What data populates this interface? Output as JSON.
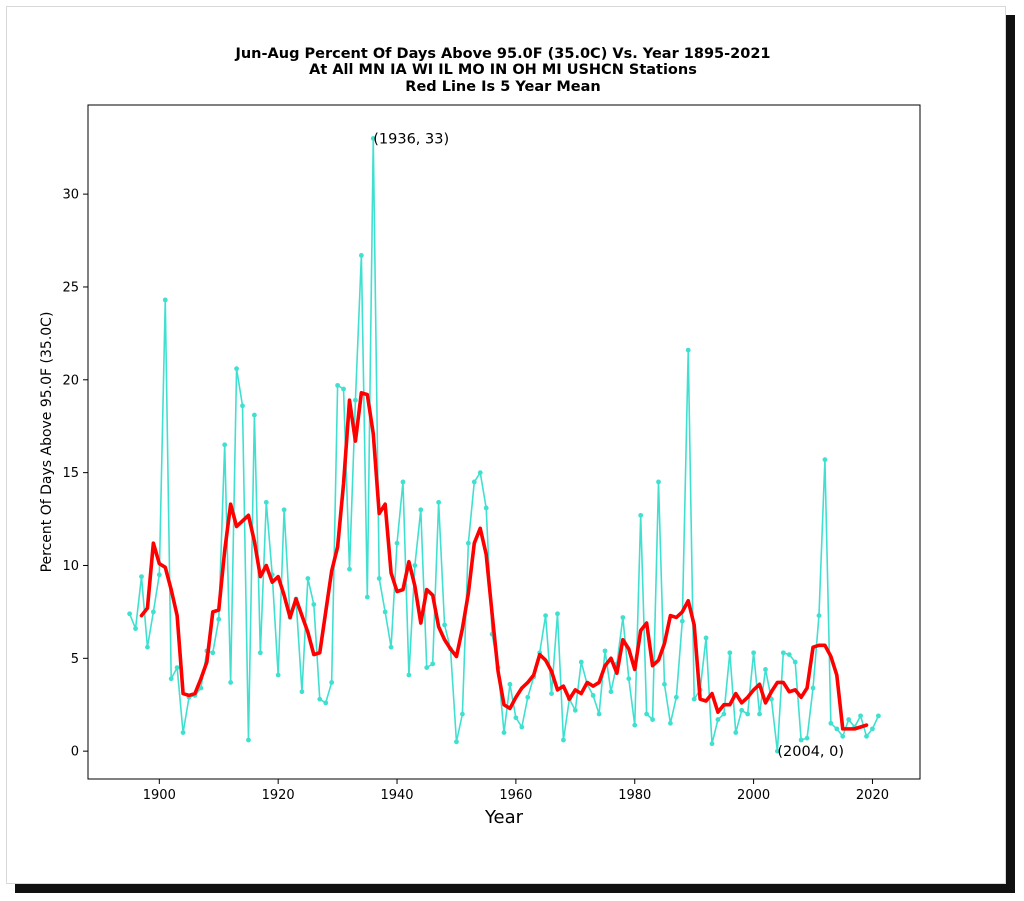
{
  "chart_data": {
    "type": "line",
    "title": [
      "Jun-Aug Percent Of Days Above 95.0F (35.0C) Vs. Year 1895-2021",
      "At All MN IA WI IL MO IN OH MI USHCN Stations",
      "Red Line Is 5 Year Mean"
    ],
    "xlabel": "Year",
    "ylabel": "Percent Of Days Above 95.0F (35.0C)",
    "xlim": [
      1888,
      2028
    ],
    "ylim": [
      -1.5,
      34.8
    ],
    "xticks": [
      1900,
      1920,
      1940,
      1960,
      1980,
      2000,
      2020
    ],
    "yticks": [
      0,
      5,
      10,
      15,
      20,
      25,
      30
    ],
    "grid": false,
    "series": [
      {
        "color": "#40e0d0",
        "marker": "dot",
        "x": [
          1895,
          1896,
          1897,
          1898,
          1899,
          1900,
          1901,
          1902,
          1903,
          1904,
          1905,
          1906,
          1907,
          1908,
          1909,
          1910,
          1911,
          1912,
          1913,
          1914,
          1915,
          1916,
          1917,
          1918,
          1919,
          1920,
          1921,
          1922,
          1923,
          1924,
          1925,
          1926,
          1927,
          1928,
          1929,
          1930,
          1931,
          1932,
          1933,
          1934,
          1935,
          1936,
          1937,
          1938,
          1939,
          1940,
          1941,
          1942,
          1943,
          1944,
          1945,
          1946,
          1947,
          1948,
          1949,
          1950,
          1951,
          1952,
          1953,
          1954,
          1955,
          1956,
          1957,
          1958,
          1959,
          1960,
          1961,
          1962,
          1963,
          1964,
          1965,
          1966,
          1967,
          1968,
          1969,
          1970,
          1971,
          1972,
          1973,
          1974,
          1975,
          1976,
          1977,
          1978,
          1979,
          1980,
          1981,
          1982,
          1983,
          1984,
          1985,
          1986,
          1987,
          1988,
          1989,
          1990,
          1991,
          1992,
          1993,
          1994,
          1995,
          1996,
          1997,
          1998,
          1999,
          2000,
          2001,
          2002,
          2003,
          2004,
          2005,
          2006,
          2007,
          2008,
          2009,
          2010,
          2011,
          2012,
          2013,
          2014,
          2015,
          2016,
          2017,
          2018,
          2019,
          2020,
          2021
        ],
        "y": [
          7.4,
          6.6,
          9.4,
          5.6,
          7.5,
          9.5,
          24.3,
          3.9,
          4.5,
          1.0,
          2.9,
          3.0,
          3.4,
          5.4,
          5.3,
          7.1,
          16.5,
          3.7,
          20.6,
          18.6,
          0.6,
          18.1,
          5.3,
          13.4,
          9.5,
          4.1,
          13.0,
          7.2,
          8.2,
          3.2,
          9.3,
          7.9,
          2.8,
          2.6,
          3.7,
          19.7,
          19.5,
          9.8,
          18.9,
          26.7,
          8.3,
          33.0,
          9.3,
          7.5,
          5.6,
          11.2,
          14.5,
          4.1,
          10.0,
          13.0,
          4.5,
          4.7,
          13.4,
          6.8,
          5.5,
          0.5,
          2.0,
          11.2,
          14.5,
          15.0,
          13.1,
          6.3,
          4.5,
          1.0,
          3.6,
          1.8,
          1.3,
          2.9,
          4.0,
          5.3,
          7.3,
          3.1,
          7.4,
          0.6,
          2.8,
          2.2,
          4.8,
          3.6,
          3.0,
          2.0,
          5.4,
          3.2,
          4.7,
          7.2,
          3.9,
          1.4,
          12.7,
          2.0,
          1.7,
          14.5,
          3.6,
          1.5,
          2.9,
          7.0,
          21.6,
          2.8,
          3.3,
          6.1,
          0.4,
          1.7,
          2.0,
          5.3,
          1.0,
          2.2,
          2.0,
          5.3,
          2.0,
          4.4,
          2.8,
          0.0,
          5.3,
          5.2,
          4.8,
          0.6,
          0.7,
          3.4,
          7.3,
          15.7,
          1.5,
          1.2,
          0.8,
          1.7,
          1.3,
          1.9,
          0.8,
          1.2,
          1.9
        ]
      },
      {
        "color": "#ff0000",
        "x": [
          1897,
          1898,
          1899,
          1900,
          1901,
          1902,
          1903,
          1904,
          1905,
          1906,
          1907,
          1908,
          1909,
          1910,
          1911,
          1912,
          1913,
          1914,
          1915,
          1916,
          1917,
          1918,
          1919,
          1920,
          1921,
          1922,
          1923,
          1924,
          1925,
          1926,
          1927,
          1928,
          1929,
          1930,
          1931,
          1932,
          1933,
          1934,
          1935,
          1936,
          1937,
          1938,
          1939,
          1940,
          1941,
          1942,
          1943,
          1944,
          1945,
          1946,
          1947,
          1948,
          1949,
          1950,
          1951,
          1952,
          1953,
          1954,
          1955,
          1956,
          1957,
          1958,
          1959,
          1960,
          1961,
          1962,
          1963,
          1964,
          1965,
          1966,
          1967,
          1968,
          1969,
          1970,
          1971,
          1972,
          1973,
          1974,
          1975,
          1976,
          1977,
          1978,
          1979,
          1980,
          1981,
          1982,
          1983,
          1984,
          1985,
          1986,
          1987,
          1988,
          1989,
          1990,
          1991,
          1992,
          1993,
          1994,
          1995,
          1996,
          1997,
          1998,
          1999,
          2000,
          2001,
          2002,
          2003,
          2004,
          2005,
          2006,
          2007,
          2008,
          2009,
          2010,
          2011,
          2012,
          2013,
          2014,
          2015,
          2016,
          2017,
          2018,
          2019
        ],
        "y": [
          7.3,
          7.7,
          11.2,
          10.1,
          9.9,
          8.7,
          7.3,
          3.1,
          3.0,
          3.1,
          3.9,
          4.8,
          7.5,
          7.6,
          10.8,
          13.3,
          12.1,
          12.4,
          12.7,
          11.3,
          9.4,
          10.0,
          9.1,
          9.4,
          8.4,
          7.2,
          8.2,
          7.3,
          6.4,
          5.2,
          5.3,
          7.5,
          9.7,
          11.0,
          14.4,
          18.9,
          16.7,
          19.3,
          19.2,
          17.1,
          12.8,
          13.3,
          9.6,
          8.6,
          8.7,
          10.2,
          8.9,
          6.9,
          8.7,
          8.4,
          6.7,
          6.0,
          5.5,
          5.1,
          6.6,
          8.5,
          11.2,
          12.0,
          10.6,
          7.4,
          4.3,
          2.5,
          2.3,
          2.9,
          3.4,
          3.7,
          4.1,
          5.2,
          4.9,
          4.3,
          3.3,
          3.5,
          2.8,
          3.3,
          3.1,
          3.7,
          3.5,
          3.7,
          4.6,
          5.0,
          4.2,
          6.0,
          5.5,
          4.4,
          6.5,
          6.9,
          4.6,
          4.9,
          5.8,
          7.3,
          7.2,
          7.5,
          8.1,
          6.8,
          2.8,
          2.7,
          3.1,
          2.1,
          2.5,
          2.5,
          3.1,
          2.6,
          2.9,
          3.3,
          3.6,
          2.6,
          3.2,
          3.7,
          3.7,
          3.2,
          3.3,
          2.9,
          3.4,
          5.6,
          5.7,
          5.7,
          5.1,
          4.1,
          1.2,
          1.2,
          1.2,
          1.3,
          1.4
        ]
      }
    ],
    "annotations": [
      {
        "x": 1936,
        "y": 33,
        "text": "(1936, 33)"
      },
      {
        "x": 2004,
        "y": 0,
        "text": "(2004, 0)"
      }
    ]
  }
}
